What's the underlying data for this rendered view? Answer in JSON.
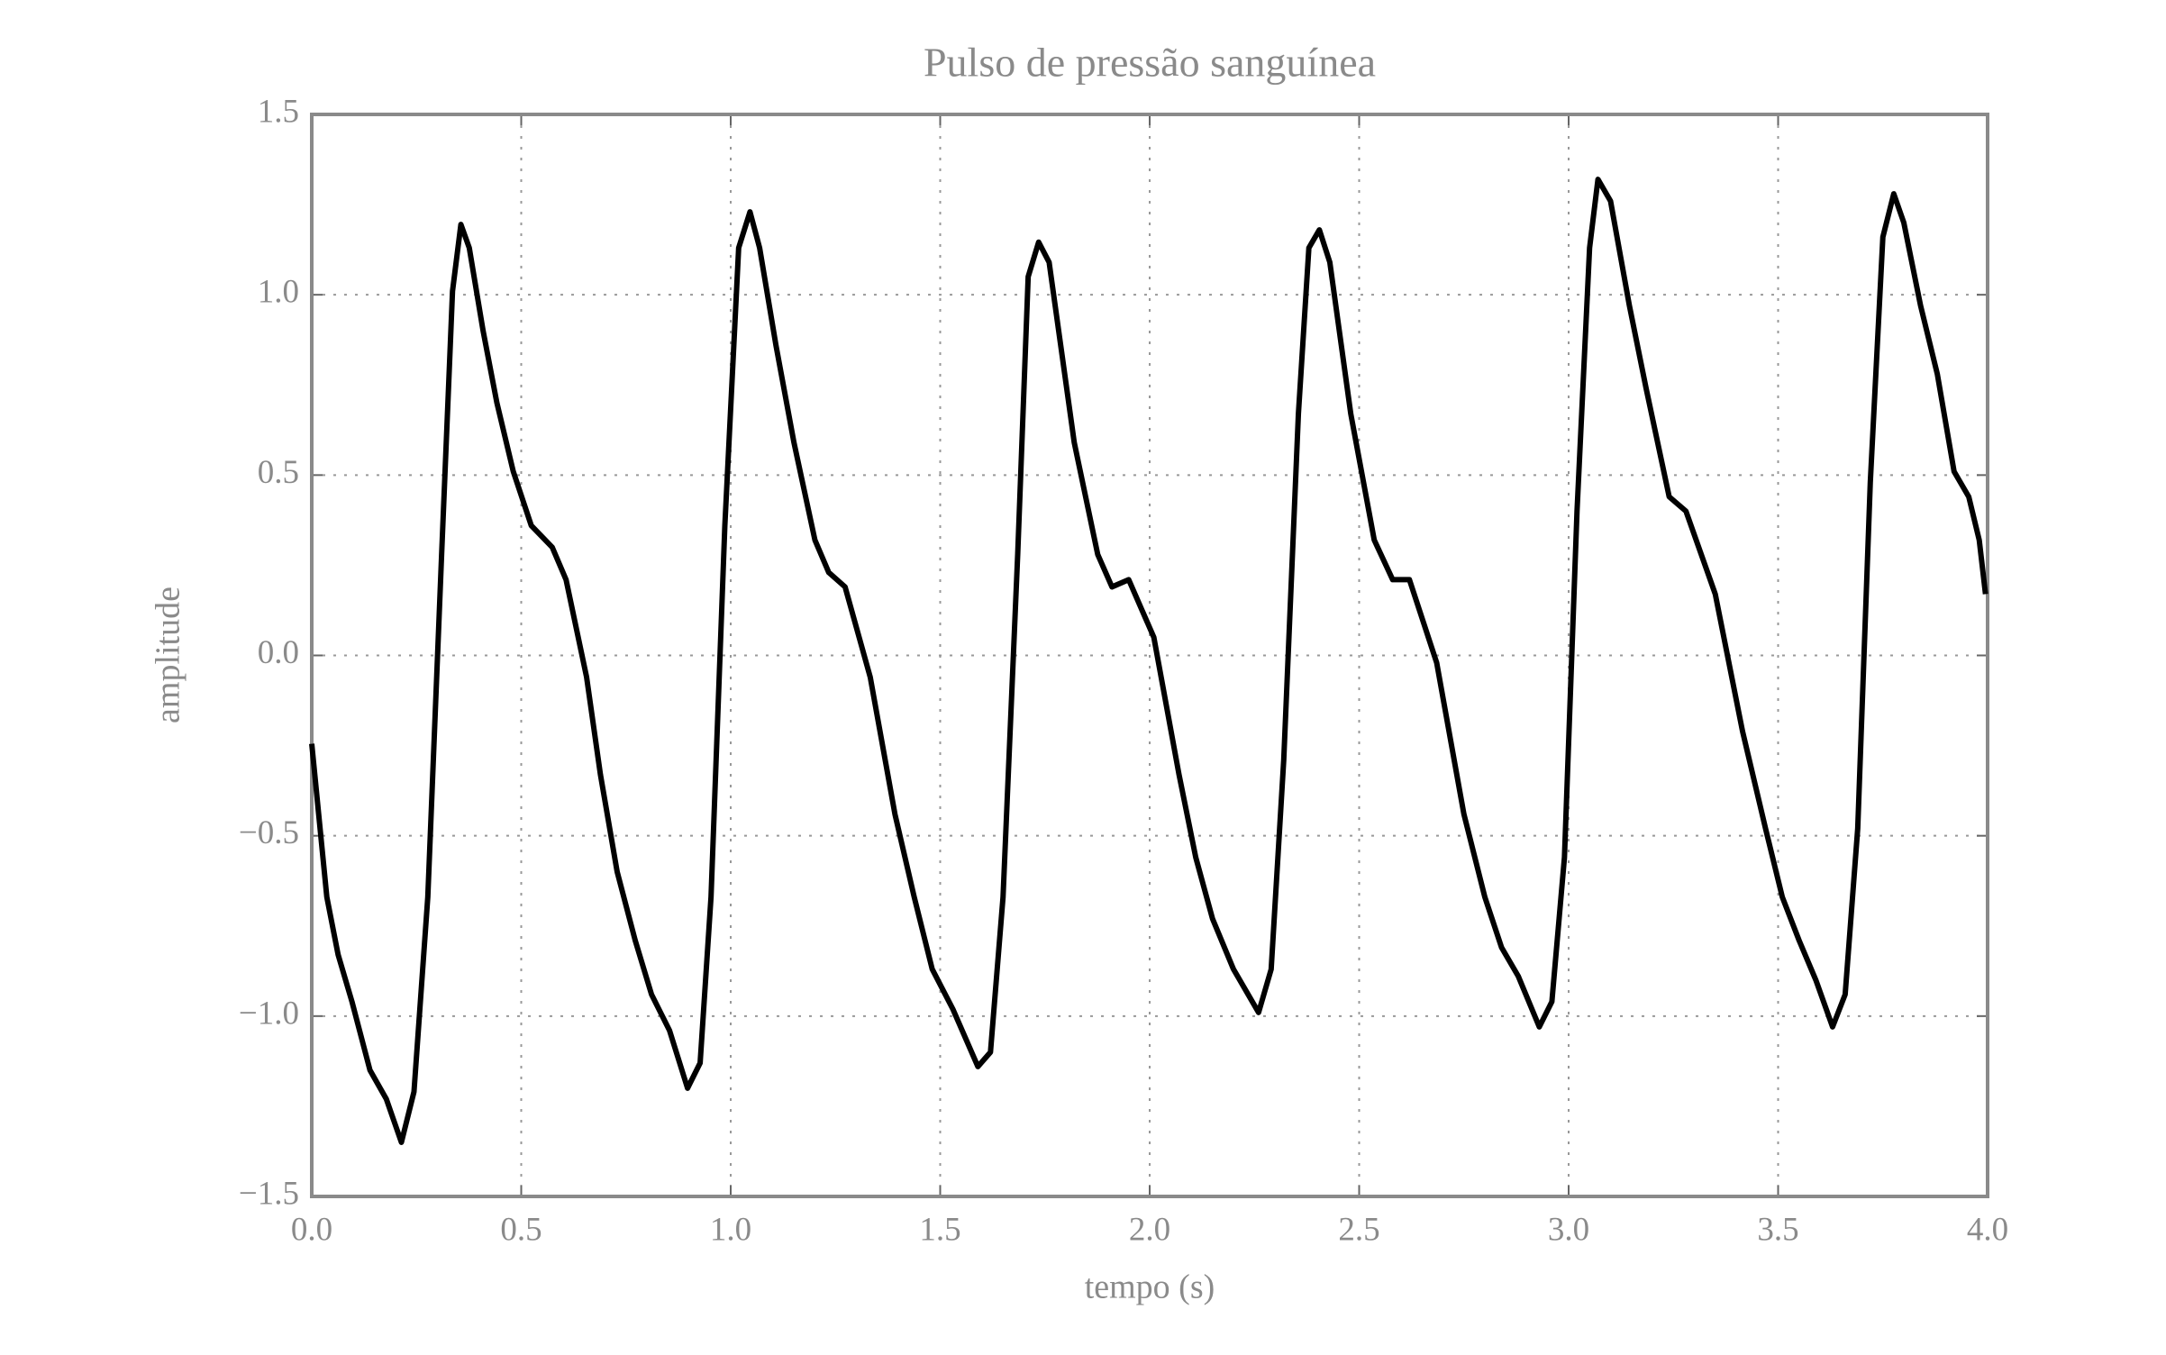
{
  "chart_data": {
    "type": "line",
    "title": "Pulso de pressão sanguínea",
    "xlabel": "tempo (s)",
    "ylabel": "amplitude",
    "x": [
      0,
      0.036,
      0.063,
      0.096,
      0.139,
      0.178,
      0.214,
      0.244,
      0.277,
      0.31,
      0.336,
      0.356,
      0.376,
      0.409,
      0.442,
      0.481,
      0.524,
      0.574,
      0.607,
      0.656,
      0.689,
      0.729,
      0.772,
      0.811,
      0.854,
      0.897,
      0.927,
      0.953,
      0.986,
      1.019,
      1.046,
      1.069,
      1.108,
      1.151,
      1.201,
      1.234,
      1.273,
      1.333,
      1.392,
      1.438,
      1.481,
      1.53,
      1.59,
      1.62,
      1.65,
      1.685,
      1.71,
      1.735,
      1.76,
      1.82,
      1.876,
      1.91,
      1.95,
      2.01,
      2.07,
      2.11,
      2.15,
      2.2,
      2.26,
      2.29,
      2.32,
      2.355,
      2.38,
      2.405,
      2.43,
      2.48,
      2.536,
      2.58,
      2.62,
      2.685,
      2.75,
      2.8,
      2.84,
      2.88,
      2.93,
      2.96,
      2.99,
      3.02,
      3.05,
      3.07,
      3.1,
      3.145,
      3.185,
      3.24,
      3.28,
      3.35,
      3.415,
      3.47,
      3.51,
      3.55,
      3.59,
      3.63,
      3.66,
      3.69,
      3.72,
      3.75,
      3.776,
      3.8,
      3.84,
      3.88,
      3.92,
      3.955,
      3.98,
      3.995
    ],
    "series": [
      {
        "color": "#000000",
        "values": [
          -0.245,
          -0.67,
          -0.83,
          -0.96,
          -1.15,
          -1.23,
          -1.35,
          -1.21,
          -0.67,
          0.28,
          1.01,
          1.195,
          1.13,
          0.9,
          0.7,
          0.51,
          0.36,
          0.3,
          0.21,
          -0.06,
          -0.33,
          -0.6,
          -0.79,
          -0.94,
          -1.04,
          -1.2,
          -1.13,
          -0.67,
          0.36,
          1.13,
          1.23,
          1.13,
          0.86,
          0.59,
          0.32,
          0.23,
          0.19,
          -0.06,
          -0.44,
          -0.67,
          -0.87,
          -0.98,
          -1.14,
          -1.1,
          -0.67,
          0.28,
          1.05,
          1.146,
          1.09,
          0.59,
          0.28,
          0.19,
          0.21,
          0.05,
          -0.33,
          -0.56,
          -0.73,
          -0.87,
          -0.99,
          -0.87,
          -0.29,
          0.67,
          1.13,
          1.18,
          1.09,
          0.67,
          0.32,
          0.21,
          0.21,
          -0.02,
          -0.44,
          -0.67,
          -0.81,
          -0.89,
          -1.03,
          -0.96,
          -0.56,
          0.4,
          1.13,
          1.32,
          1.26,
          0.97,
          0.74,
          0.44,
          0.4,
          0.17,
          -0.21,
          -0.48,
          -0.67,
          -0.79,
          -0.9,
          -1.03,
          -0.94,
          -0.48,
          0.48,
          1.16,
          1.28,
          1.2,
          0.97,
          0.78,
          0.51,
          0.44,
          0.32,
          0.17
        ]
      }
    ],
    "xlim": [
      0,
      4
    ],
    "ylim": [
      -1.5,
      1.5
    ],
    "xticks": [
      {
        "value": 0,
        "label": "0.0"
      },
      {
        "value": 0.5,
        "label": "0.5"
      },
      {
        "value": 1,
        "label": "1.0"
      },
      {
        "value": 1.5,
        "label": "1.5"
      },
      {
        "value": 2,
        "label": "2.0"
      },
      {
        "value": 2.5,
        "label": "2.5"
      },
      {
        "value": 3,
        "label": "3.0"
      },
      {
        "value": 3.5,
        "label": "3.5"
      },
      {
        "value": 4,
        "label": "4.0"
      }
    ],
    "yticks": [
      {
        "value": -1.5,
        "label": "−1.5"
      },
      {
        "value": -1,
        "label": "−1.0"
      },
      {
        "value": -0.5,
        "label": "−0.5"
      },
      {
        "value": 0,
        "label": "0.0"
      },
      {
        "value": 0.5,
        "label": "0.5"
      },
      {
        "value": 1,
        "label": "1.0"
      },
      {
        "value": 1.5,
        "label": "1.5"
      }
    ],
    "grid": true
  }
}
